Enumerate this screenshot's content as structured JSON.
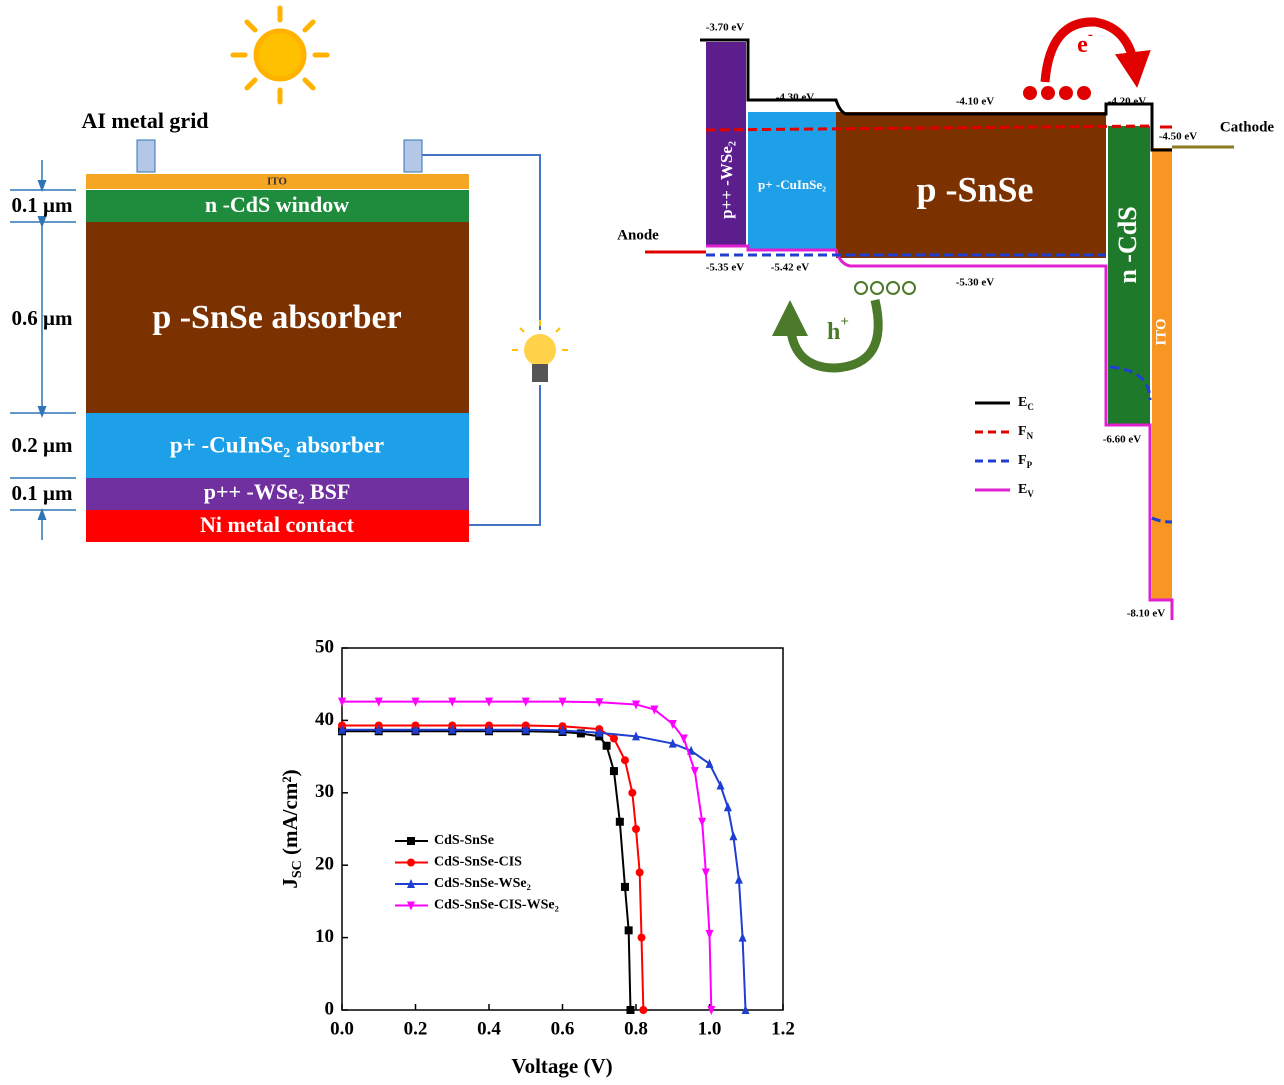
{
  "schematic": {
    "grid_label": "AI metal grid",
    "layers": [
      "ITO",
      "n -CdS window",
      "p -SnSe absorber",
      "p+ -CuInSe₂ absorber",
      "p++ -WSe₂ BSF",
      "Ni metal contact"
    ],
    "thicknesses": [
      "0.1 μm",
      "0.6 μm",
      "0.2 μm",
      "0.1 μm"
    ]
  },
  "band_diagram": {
    "regions": [
      "p++ -WSe₂",
      "p+ -CuInSe₂",
      "p -SnSe",
      "n -CdS",
      "ITO"
    ],
    "energies": [
      "-3.70 eV",
      "-4.30 eV",
      "-4.10 eV",
      "-4.20 eV",
      "-4.50 eV",
      "-5.35 eV",
      "-5.42 eV",
      "-5.30 eV",
      "-6.60 eV",
      "-8.10 eV"
    ],
    "anode": "Anode",
    "cathode": "Cathode",
    "electron": {
      "symbol": "e",
      "sup": "-"
    },
    "hole": {
      "symbol": "h",
      "sup": "+"
    },
    "legend": [
      {
        "symbol": "E",
        "sub": "C"
      },
      {
        "symbol": "F",
        "sub": "N"
      },
      {
        "symbol": "F",
        "sub": "P"
      },
      {
        "symbol": "E",
        "sub": "V"
      }
    ]
  },
  "chart_data": {
    "type": "line",
    "x_label": "Voltage (V)",
    "y_label": {
      "symbol": "J",
      "sub": "SC",
      "unit": " (mA/cm²)"
    },
    "xlim": [
      0,
      1.2
    ],
    "ylim": [
      0,
      50
    ],
    "xticks": [
      {
        "value": 0,
        "label": "0.0"
      },
      0.2,
      0.4,
      0.6,
      0.8,
      {
        "value": 1,
        "label": "1.0"
      },
      1.2
    ],
    "yticks": [
      0,
      10,
      20,
      30,
      40,
      50
    ],
    "series": [
      {
        "name": "CdS-SnSe",
        "color": "#000000",
        "marker": "square",
        "x": [
          0,
          0.1,
          0.2,
          0.3,
          0.4,
          0.5,
          0.6,
          0.65,
          0.7,
          0.72,
          0.74,
          0.756,
          0.77,
          0.78,
          0.785
        ],
        "values": [
          38.5,
          38.5,
          38.5,
          38.5,
          38.5,
          38.5,
          38.4,
          38.2,
          37.8,
          36.5,
          33,
          26,
          17,
          11,
          0
        ]
      },
      {
        "name": "CdS-SnSe-CIS",
        "color": "#ff0000",
        "marker": "circle",
        "x": [
          0,
          0.1,
          0.2,
          0.3,
          0.4,
          0.5,
          0.6,
          0.7,
          0.74,
          0.77,
          0.79,
          0.8,
          0.81,
          0.815,
          0.82
        ],
        "values": [
          39.3,
          39.3,
          39.3,
          39.3,
          39.3,
          39.3,
          39.2,
          38.8,
          37.5,
          34.5,
          30,
          25,
          19,
          10,
          0
        ]
      },
      {
        "name": "CdS-SnSe-WSe₂",
        "color": "#1f3fd0",
        "marker": "triangle-up",
        "x": [
          0,
          0.1,
          0.2,
          0.3,
          0.4,
          0.5,
          0.6,
          0.7,
          0.8,
          0.9,
          0.95,
          1.0,
          1.03,
          1.05,
          1.065,
          1.08,
          1.09,
          1.098
        ],
        "values": [
          38.7,
          38.7,
          38.7,
          38.7,
          38.7,
          38.7,
          38.6,
          38.3,
          37.8,
          36.8,
          35.8,
          34,
          31,
          28,
          24,
          18,
          10,
          0
        ]
      },
      {
        "name": "CdS-SnSe-CIS-WSe₂",
        "color": "#ff00ff",
        "marker": "triangle-down",
        "x": [
          0,
          0.1,
          0.2,
          0.3,
          0.4,
          0.5,
          0.6,
          0.7,
          0.8,
          0.85,
          0.9,
          0.93,
          0.96,
          0.98,
          0.99,
          1.0,
          1.005
        ],
        "values": [
          42.6,
          42.6,
          42.6,
          42.6,
          42.6,
          42.6,
          42.6,
          42.5,
          42.2,
          41.5,
          39.5,
          37.5,
          33,
          26,
          19,
          10.5,
          0
        ]
      }
    ]
  }
}
